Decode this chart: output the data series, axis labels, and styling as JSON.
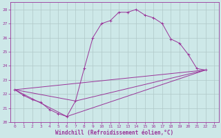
{
  "title": "",
  "xlabel": "Windchill (Refroidissement éolien,°C)",
  "bg_color": "#cde8e8",
  "line_color": "#993399",
  "grid_color": "#b0c8c8",
  "xlim": [
    -0.5,
    23.5
  ],
  "ylim": [
    20,
    28.5
  ],
  "yticks": [
    20,
    21,
    22,
    23,
    24,
    25,
    26,
    27,
    28
  ],
  "xticks": [
    0,
    1,
    2,
    3,
    4,
    5,
    6,
    7,
    8,
    9,
    10,
    11,
    12,
    13,
    14,
    15,
    16,
    17,
    18,
    19,
    20,
    21,
    22,
    23
  ],
  "series1": [
    [
      0,
      22.3
    ],
    [
      1,
      21.9
    ],
    [
      2,
      21.6
    ],
    [
      3,
      21.4
    ],
    [
      4,
      20.9
    ],
    [
      5,
      20.6
    ],
    [
      6,
      20.4
    ],
    [
      7,
      21.5
    ],
    [
      8,
      23.8
    ],
    [
      9,
      26.0
    ],
    [
      10,
      27.0
    ],
    [
      11,
      27.2
    ],
    [
      12,
      27.8
    ],
    [
      13,
      27.8
    ],
    [
      14,
      28.0
    ],
    [
      15,
      27.6
    ],
    [
      16,
      27.4
    ],
    [
      17,
      27.0
    ],
    [
      18,
      25.9
    ],
    [
      19,
      25.6
    ],
    [
      20,
      24.8
    ],
    [
      21,
      23.8
    ],
    [
      22,
      23.7
    ]
  ],
  "series2": [
    [
      0,
      22.3
    ],
    [
      22,
      23.7
    ]
  ],
  "series3": [
    [
      0,
      22.3
    ],
    [
      6,
      20.4
    ],
    [
      22,
      23.7
    ]
  ],
  "series4": [
    [
      0,
      22.3
    ],
    [
      7,
      21.5
    ],
    [
      22,
      23.7
    ]
  ],
  "marker_size": 2.5,
  "xlabel_fontsize": 5.5,
  "tick_fontsize": 4.5
}
